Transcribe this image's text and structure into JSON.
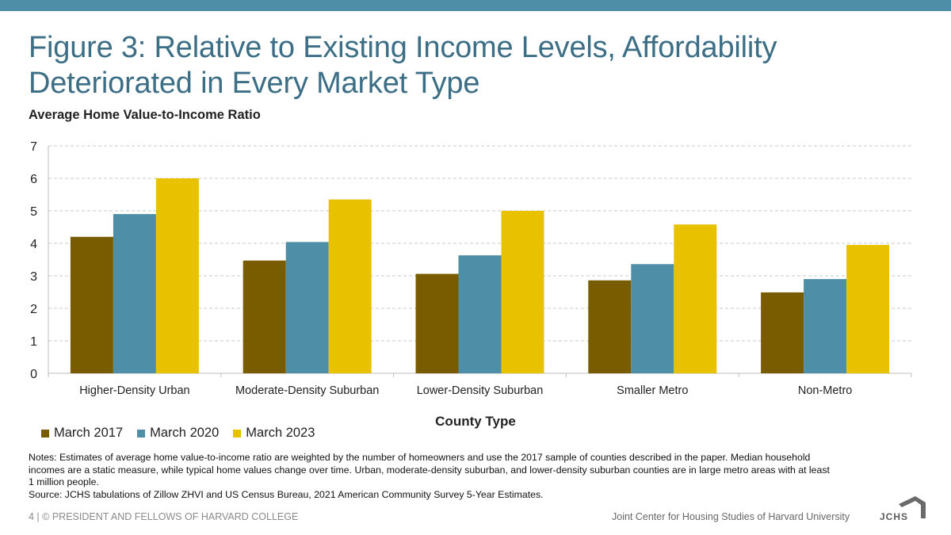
{
  "title": "Figure 3: Relative to Existing Income Levels, Affordability Deteriorated in Every Market Type",
  "colors": {
    "topbar": "#4e8ea7",
    "title": "#3c6e86"
  },
  "chart_data": {
    "type": "bar",
    "title": "Average Home Value-to-Income Ratio",
    "xlabel": "County Type",
    "ylabel": "",
    "ylim": [
      0,
      7
    ],
    "yticks": [
      0,
      1,
      2,
      3,
      4,
      5,
      6,
      7
    ],
    "grid": true,
    "categories": [
      "Higher-Density Urban",
      "Moderate-Density Suburban",
      "Lower-Density Suburban",
      "Smaller Metro",
      "Non-Metro"
    ],
    "series": [
      {
        "name": "March 2017",
        "color": "#7a5c00",
        "values": [
          4.2,
          3.47,
          3.06,
          2.86,
          2.49
        ]
      },
      {
        "name": "March 2020",
        "color": "#4e8ea7",
        "values": [
          4.9,
          4.04,
          3.63,
          3.36,
          2.9
        ]
      },
      {
        "name": "March 2023",
        "color": "#e8c100",
        "values": [
          6.0,
          5.35,
          5.0,
          4.58,
          3.95
        ]
      }
    ],
    "legend_position": "bottom-left"
  },
  "notes": {
    "text": "Notes: Estimates of average home value-to-income ratio are weighted by the number of homeowners and use the 2017 sample of counties described in the paper. Median household incomes are a static measure, while typical home values change over time. Urban, moderate-density suburban, and lower-density suburban counties are in large metro areas with at least 1 million people.",
    "source": "Source: JCHS tabulations of Zillow ZHVI and US Census Bureau, 2021 American Community Survey 5-Year Estimates."
  },
  "footer": {
    "left": "4 | © PRESIDENT AND FELLOWS OF HARVARD COLLEGE",
    "right": "Joint Center for Housing Studies of Harvard University",
    "logo_text": "JCHS"
  }
}
